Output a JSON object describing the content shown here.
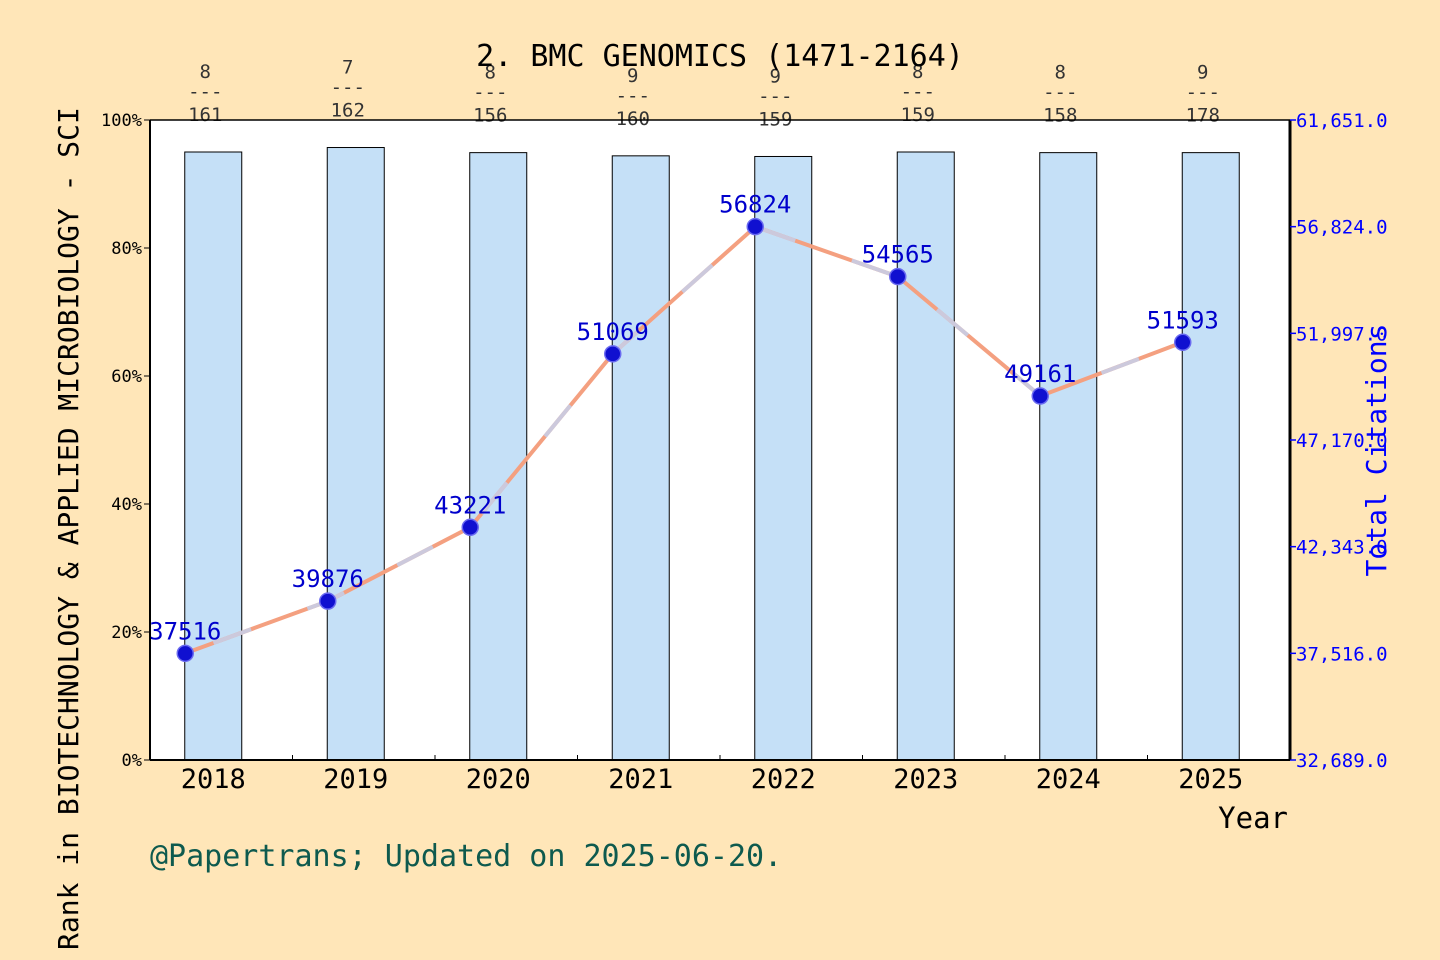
{
  "chart_data": {
    "type": "bar+line",
    "title": "2. BMC GENOMICS (1471-2164)",
    "xlabel": "Year",
    "ylabel_left": "Rank in BIOTECHNOLOGY & APPLIED MICROBIOLOGY - SCI",
    "ylabel_right": "Total Citations",
    "categories": [
      "2018",
      "2019",
      "2020",
      "2021",
      "2022",
      "2023",
      "2024",
      "2025"
    ],
    "bars": {
      "values_pct": [
        95.0,
        95.7,
        94.9,
        94.4,
        94.3,
        95.0,
        94.9,
        94.9
      ],
      "ranks": [
        "8",
        "7",
        "8",
        "9",
        "9",
        "8",
        "8",
        "9"
      ],
      "totals": [
        "161",
        "162",
        "156",
        "160",
        "159",
        "159",
        "158",
        "178"
      ],
      "separator": "---"
    },
    "line": {
      "values": [
        37516,
        39876,
        43221,
        51069,
        56824,
        54565,
        49161,
        51593
      ],
      "labels": [
        "37516",
        "39876",
        "43221",
        "51069",
        "56824",
        "54565",
        "49161",
        "51593"
      ]
    },
    "y_left": {
      "min": 0,
      "max": 100,
      "ticks": [
        0,
        20,
        40,
        60,
        80,
        100
      ],
      "tick_labels": [
        "0%",
        "20%",
        "40%",
        "60%",
        "80%",
        "100%"
      ]
    },
    "y_right": {
      "min": 32689,
      "max": 61651,
      "ticks": [
        32689,
        37516,
        42343,
        47170,
        51997,
        56824,
        61651
      ],
      "tick_labels": [
        "32,689.0",
        "37,516.0",
        "42,343.0",
        "47,170.0",
        "51,997.0",
        "56,824.0",
        "61,651.0"
      ]
    },
    "grid": false,
    "legend": "none"
  },
  "footer": "@Papertrans; Updated on 2025-06-20.",
  "colors": {
    "background": "#ffe6b8",
    "bar_fill": "#c5e0f7",
    "line": "#f4a080",
    "line_highlight": "#c8cde6",
    "marker": "#1010d0",
    "point_label": "#0000cc",
    "right_axis": "#0000ff",
    "footer": "#0e5a4e"
  }
}
